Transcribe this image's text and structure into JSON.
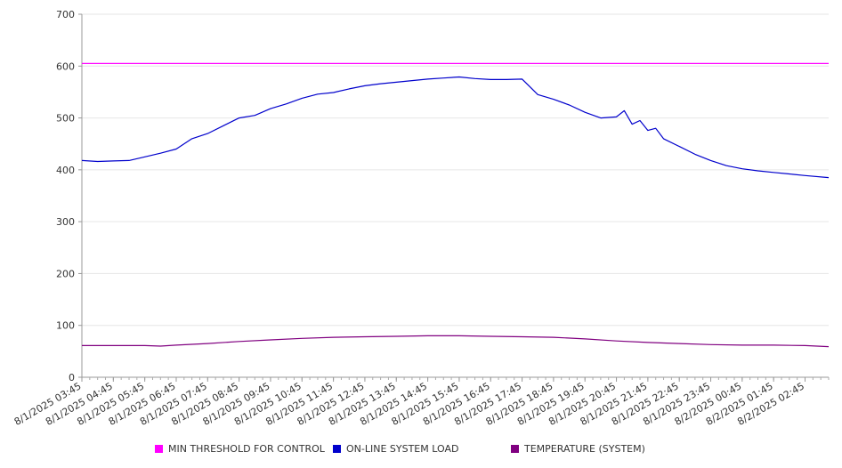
{
  "chart_data": {
    "type": "line",
    "title": "",
    "xlabel": "",
    "ylabel": "",
    "ylim": [
      0,
      700
    ],
    "yticks": [
      0,
      100,
      200,
      300,
      400,
      500,
      600,
      700
    ],
    "grid": true,
    "legend_position": "bottom",
    "x_tick_labels": [
      "8/1/2025 03:45",
      "8/1/2025 04:45",
      "8/1/2025 05:45",
      "8/1/2025 06:45",
      "8/1/2025 07:45",
      "8/1/2025 08:45",
      "8/1/2025 09:45",
      "8/1/2025 10:45",
      "8/1/2025 11:45",
      "8/1/2025 12:45",
      "8/1/2025 13:45",
      "8/1/2025 14:45",
      "8/1/2025 15:45",
      "8/1/2025 16:45",
      "8/1/2025 17:45",
      "8/1/2025 18:45",
      "8/1/2025 19:45",
      "8/1/2025 20:45",
      "8/1/2025 21:45",
      "8/1/2025 22:45",
      "8/1/2025 23:45",
      "8/2/2025 00:45",
      "8/2/2025 01:45",
      "8/2/2025 02:45"
    ],
    "x_range": [
      "8/1/2025 03:45",
      "8/2/2025 03:30"
    ],
    "series": [
      {
        "name": "MIN THRESHOLD FOR CONTROL",
        "color": "#ff00ff",
        "points": [
          [
            "8/1/2025 03:45",
            605
          ],
          [
            "8/2/2025 03:30",
            605
          ]
        ]
      },
      {
        "name": "ON-LINE SYSTEM LOAD",
        "color": "#0000cc",
        "points": [
          [
            "8/1/2025 03:45",
            418
          ],
          [
            "8/1/2025 04:15",
            416
          ],
          [
            "8/1/2025 04:45",
            417
          ],
          [
            "8/1/2025 05:15",
            418
          ],
          [
            "8/1/2025 05:45",
            425
          ],
          [
            "8/1/2025 06:15",
            432
          ],
          [
            "8/1/2025 06:45",
            440
          ],
          [
            "8/1/2025 07:15",
            460
          ],
          [
            "8/1/2025 07:45",
            470
          ],
          [
            "8/1/2025 08:15",
            485
          ],
          [
            "8/1/2025 08:45",
            500
          ],
          [
            "8/1/2025 09:15",
            505
          ],
          [
            "8/1/2025 09:45",
            518
          ],
          [
            "8/1/2025 10:15",
            527
          ],
          [
            "8/1/2025 10:45",
            538
          ],
          [
            "8/1/2025 11:15",
            546
          ],
          [
            "8/1/2025 11:45",
            549
          ],
          [
            "8/1/2025 12:15",
            556
          ],
          [
            "8/1/2025 12:45",
            562
          ],
          [
            "8/1/2025 13:15",
            566
          ],
          [
            "8/1/2025 13:45",
            569
          ],
          [
            "8/1/2025 14:15",
            572
          ],
          [
            "8/1/2025 14:45",
            575
          ],
          [
            "8/1/2025 15:15",
            577
          ],
          [
            "8/1/2025 15:45",
            579
          ],
          [
            "8/1/2025 16:15",
            576
          ],
          [
            "8/1/2025 16:45",
            574
          ],
          [
            "8/1/2025 17:15",
            574
          ],
          [
            "8/1/2025 17:45",
            575
          ],
          [
            "8/1/2025 18:00",
            560
          ],
          [
            "8/1/2025 18:15",
            545
          ],
          [
            "8/1/2025 18:45",
            536
          ],
          [
            "8/1/2025 19:15",
            525
          ],
          [
            "8/1/2025 19:45",
            511
          ],
          [
            "8/1/2025 20:15",
            500
          ],
          [
            "8/1/2025 20:45",
            502
          ],
          [
            "8/1/2025 21:00",
            514
          ],
          [
            "8/1/2025 21:15",
            488
          ],
          [
            "8/1/2025 21:30",
            495
          ],
          [
            "8/1/2025 21:45",
            476
          ],
          [
            "8/1/2025 22:00",
            480
          ],
          [
            "8/1/2025 22:15",
            460
          ],
          [
            "8/1/2025 22:45",
            445
          ],
          [
            "8/1/2025 23:15",
            430
          ],
          [
            "8/1/2025 23:45",
            418
          ],
          [
            "8/2/2025 00:15",
            408
          ],
          [
            "8/2/2025 00:45",
            402
          ],
          [
            "8/2/2025 01:15",
            398
          ],
          [
            "8/2/2025 01:45",
            395
          ],
          [
            "8/2/2025 02:15",
            392
          ],
          [
            "8/2/2025 02:45",
            389
          ],
          [
            "8/2/2025 03:30",
            385
          ]
        ]
      },
      {
        "name": "TEMPERATURE (SYSTEM)",
        "color": "#800080",
        "points": [
          [
            "8/1/2025 03:45",
            61
          ],
          [
            "8/1/2025 05:45",
            61
          ],
          [
            "8/1/2025 06:15",
            60
          ],
          [
            "8/1/2025 06:45",
            62
          ],
          [
            "8/1/2025 07:45",
            65
          ],
          [
            "8/1/2025 08:45",
            69
          ],
          [
            "8/1/2025 09:45",
            72
          ],
          [
            "8/1/2025 10:45",
            75
          ],
          [
            "8/1/2025 11:45",
            77
          ],
          [
            "8/1/2025 12:45",
            78
          ],
          [
            "8/1/2025 13:45",
            79
          ],
          [
            "8/1/2025 14:45",
            80
          ],
          [
            "8/1/2025 15:45",
            80
          ],
          [
            "8/1/2025 16:45",
            79
          ],
          [
            "8/1/2025 17:45",
            78
          ],
          [
            "8/1/2025 18:45",
            77
          ],
          [
            "8/1/2025 19:45",
            74
          ],
          [
            "8/1/2025 20:45",
            70
          ],
          [
            "8/1/2025 21:45",
            67
          ],
          [
            "8/1/2025 22:45",
            65
          ],
          [
            "8/1/2025 23:45",
            63
          ],
          [
            "8/2/2025 00:45",
            62
          ],
          [
            "8/2/2025 01:45",
            62
          ],
          [
            "8/2/2025 02:45",
            61
          ],
          [
            "8/2/2025 03:30",
            59
          ]
        ]
      }
    ]
  }
}
